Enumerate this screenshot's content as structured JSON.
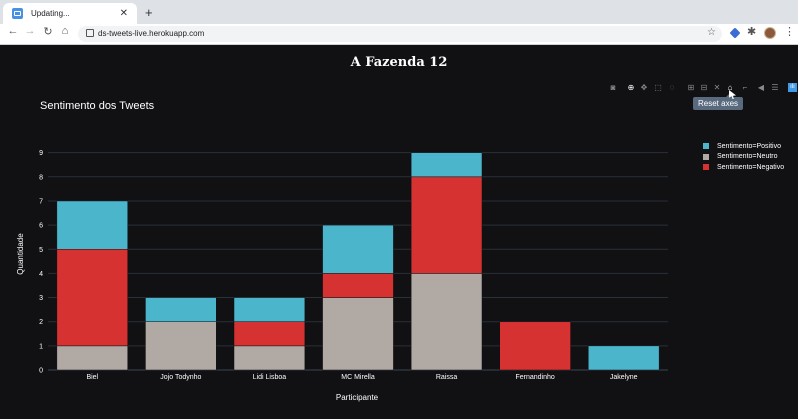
{
  "browser": {
    "tab_title": "Updating...",
    "tab_close": "✕",
    "new_tab": "+",
    "back": "←",
    "forward": "→",
    "reload": "↻",
    "home": "⌂",
    "url": "ds-tweets-live.herokuapp.com",
    "star": "☆",
    "extensions_icon": "✱",
    "menu": "⋮"
  },
  "page": {
    "title": "A Fazenda 12"
  },
  "modebar": {
    "tooltip": "Reset axes",
    "buttons": [
      "camera-icon",
      "zoom-icon",
      "pan-icon",
      "box-select-icon",
      "lasso-select-icon",
      "zoom-in-icon",
      "zoom-out-icon",
      "autoscale-icon",
      "reset-axes-icon",
      "spike-lines-icon",
      "hover-closest-icon",
      "hover-compare-icon",
      "plotly-logo"
    ]
  },
  "chart_data": {
    "type": "bar",
    "title": "Sentimento dos Tweets",
    "xlabel": "Participante",
    "ylabel": "Quantidade",
    "categories": [
      "Biel",
      "Jojo Todynho",
      "Lidi Lisboa",
      "MC Mirella",
      "Raissa",
      "Fernandinho",
      "Jakelyne"
    ],
    "ylim": [
      0,
      9.4
    ],
    "yticks": [
      0,
      1,
      2,
      3,
      4,
      5,
      6,
      7,
      8,
      9
    ],
    "stacked": true,
    "grid": true,
    "legend_position": "right",
    "series": [
      {
        "name": "Sentimento=Neutro",
        "color": "#b0a9a4",
        "values": [
          1,
          2,
          1,
          3,
          4,
          0,
          0
        ]
      },
      {
        "name": "Sentimento=Negativo",
        "color": "#d63232",
        "values": [
          4,
          0,
          1,
          1,
          4,
          2,
          0
        ]
      },
      {
        "name": "Sentimento=Positivo",
        "color": "#4bb5cc",
        "values": [
          2,
          1,
          1,
          2,
          1,
          0,
          1
        ]
      }
    ],
    "legend": [
      {
        "name": "Sentimento=Positivo",
        "color": "#4bb5cc"
      },
      {
        "name": "Sentimento=Neutro",
        "color": "#b0a9a4"
      },
      {
        "name": "Sentimento=Negativo",
        "color": "#d63232"
      }
    ]
  }
}
